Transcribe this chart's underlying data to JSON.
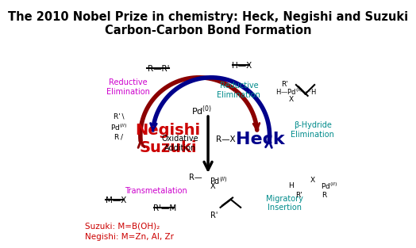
{
  "title": "The 2010 Nobel Prize in chemistry: Heck, Negishi and Suzuki\nCarbon-Carbon Bond Formation",
  "bg_color": "#ffffff",
  "left_arc_color": "#8B0000",
  "right_arc_color": "#00008B",
  "magenta_color": "#cc00cc",
  "cyan_color": "#008B8B",
  "red_label_color": "#cc0000",
  "black": "#000000"
}
